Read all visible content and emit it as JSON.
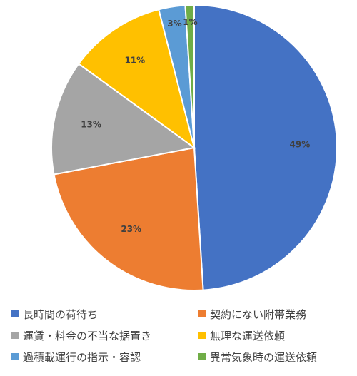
{
  "chart_data": {
    "type": "pie",
    "title": "",
    "categories": [
      "長時間の荷待ち",
      "契約にない附帯業務",
      "運賃・料金の不当な据置き",
      "無理な運送依頼",
      "過積載運行の指示・容認",
      "異常気象時の運送依頼"
    ],
    "values": [
      49,
      23,
      13,
      11,
      3,
      1
    ],
    "data_labels": [
      "49%",
      "23%",
      "13%",
      "11%",
      "3%",
      "1%"
    ],
    "colors": [
      "#4472C4",
      "#ED7D31",
      "#A5A5A5",
      "#FFC000",
      "#5B9BD5",
      "#70AD47"
    ],
    "start_angle": "12 o'clock, clockwise",
    "legend_position": "bottom"
  }
}
